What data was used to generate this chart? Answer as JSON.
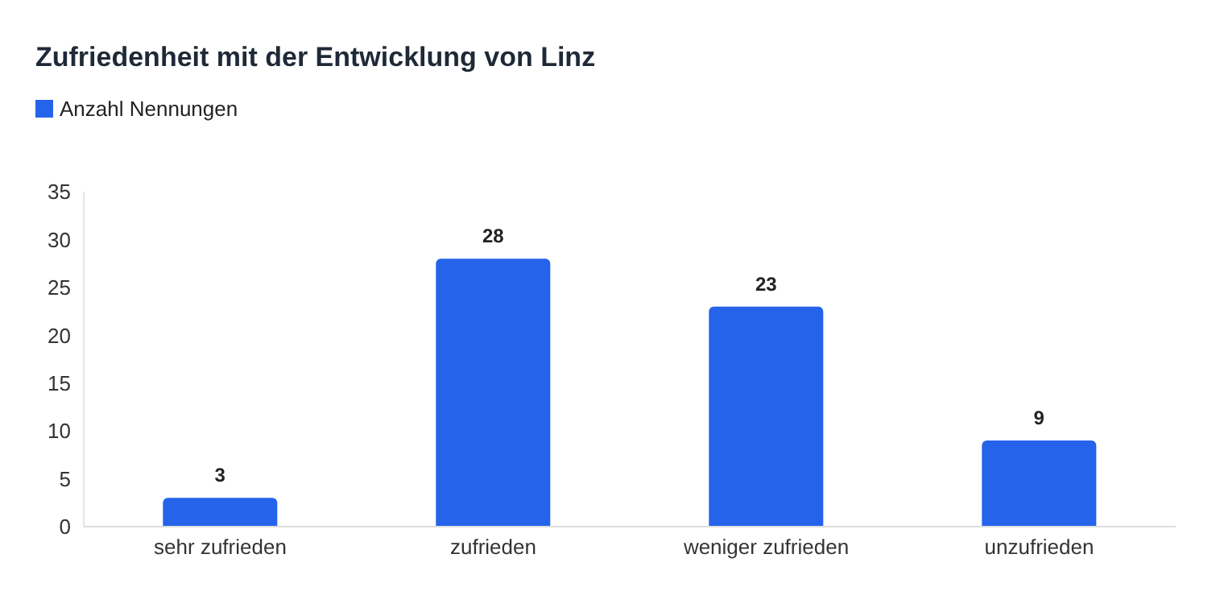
{
  "chart_data": {
    "type": "bar",
    "title": "Zufriedenheit mit der Entwicklung von Linz",
    "categories": [
      "sehr zufrieden",
      "zufrieden",
      "weniger zufrieden",
      "unzufrieden"
    ],
    "series": [
      {
        "name": "Anzahl Nennungen",
        "color": "#2563eb",
        "values": [
          3,
          28,
          23,
          9
        ]
      }
    ],
    "ylim": [
      0,
      35
    ],
    "yticks": [
      0,
      5,
      10,
      15,
      20,
      25,
      30,
      35
    ],
    "grid": false,
    "legend": "top left",
    "data_labels": true
  }
}
